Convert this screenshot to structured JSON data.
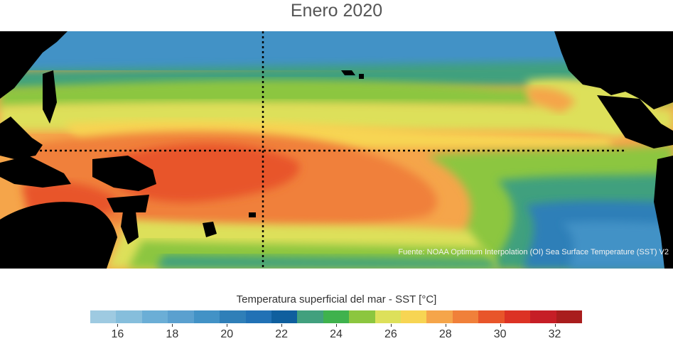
{
  "title": "Enero 2020",
  "source_note": "Fuente: NOAA Optimum Interpolation (OI) Sea Surface Temperature (SST) V2",
  "colorbar": {
    "label": "Temperatura superficial del mar - SST  [°C]",
    "min": 15,
    "max": 33,
    "colors": [
      "#9ecae1",
      "#86bedc",
      "#6baed6",
      "#5aa0cf",
      "#4292c6",
      "#2f7fb8",
      "#2171b5",
      "#0f5f9e",
      "#41a07e",
      "#3fb24d",
      "#8cc63f",
      "#dde05a",
      "#f7d553",
      "#f5a54a",
      "#f0803a",
      "#e8552a",
      "#dc3224",
      "#c61e26",
      "#a91d1d"
    ],
    "tick_values": [
      16,
      18,
      20,
      22,
      24,
      26,
      28,
      30,
      32
    ],
    "tick_labels": [
      "16",
      "18",
      "20",
      "22",
      "24",
      "26",
      "28",
      "30",
      "32"
    ]
  },
  "map": {
    "description_colors": {
      "land": "#000000",
      "grid": "#000000"
    },
    "equator_line": "dotted",
    "dateline_line": "dotted"
  }
}
